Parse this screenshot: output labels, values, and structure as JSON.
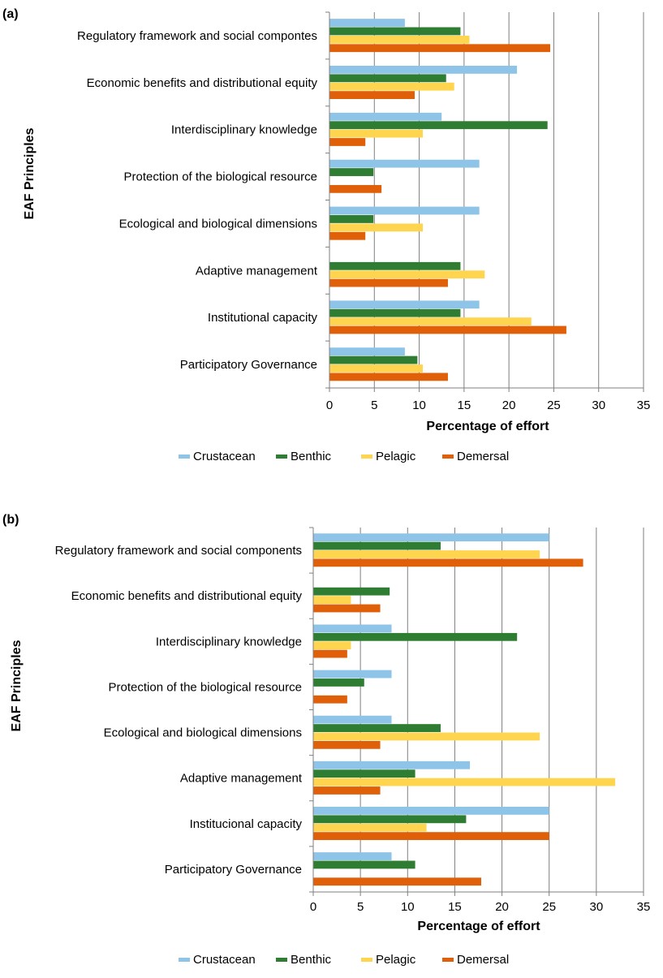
{
  "colors": {
    "Crustacean": "#8EC4E8",
    "Benthic": "#2E7D32",
    "Pelagic": "#FFD54F",
    "Demersal": "#E0600A"
  },
  "chart_data": [
    {
      "type": "bar",
      "orientation": "horizontal",
      "panel_label": "(a)",
      "xlabel": "Percentage of effort",
      "ylabel": "EAF Principles",
      "xlim": [
        0,
        35
      ],
      "xticks": [
        "0",
        "5",
        "10",
        "15",
        "20",
        "25",
        "30",
        "35"
      ],
      "grid": "vertical",
      "legend_position": "bottom",
      "categories": [
        "Regulatory framework and social compontes",
        "Economic benefits and distributional equity",
        "Interdisciplinary knowledge",
        "Protection of the biological resource",
        "Ecological and biological dimensions",
        "Adaptive management",
        "Institutional capacity",
        "Participatory Governance"
      ],
      "series": [
        {
          "name": "Crustacean",
          "values": [
            8.4,
            20.9,
            12.5,
            16.7,
            16.7,
            0,
            16.7,
            8.4
          ]
        },
        {
          "name": "Benthic",
          "values": [
            14.6,
            13.0,
            24.3,
            4.9,
            4.9,
            14.6,
            14.6,
            9.8
          ]
        },
        {
          "name": "Pelagic",
          "values": [
            15.6,
            13.9,
            10.4,
            0,
            10.4,
            17.3,
            22.5,
            10.4
          ]
        },
        {
          "name": "Demersal",
          "values": [
            24.6,
            9.5,
            4.0,
            5.8,
            4.0,
            13.2,
            26.4,
            13.2
          ]
        }
      ]
    },
    {
      "type": "bar",
      "orientation": "horizontal",
      "panel_label": "(b)",
      "xlabel": "Percentage of effort",
      "ylabel": "EAF Principles",
      "xlim": [
        0,
        35
      ],
      "xticks": [
        "0",
        "5",
        "10",
        "15",
        "20",
        "25",
        "30",
        "35"
      ],
      "grid": "vertical",
      "legend_position": "bottom",
      "categories": [
        "Regulatory framework and social components",
        "Economic benefits and distributional equity",
        "Interdisciplinary knowledge",
        "Protection of the biological resource",
        "Ecological and biological dimensions",
        "Adaptive management",
        "Institucional capacity",
        "Participatory Governance"
      ],
      "series": [
        {
          "name": "Crustacean",
          "values": [
            25.0,
            0,
            8.3,
            8.3,
            8.3,
            16.6,
            25.0,
            8.3
          ]
        },
        {
          "name": "Benthic",
          "values": [
            13.5,
            8.1,
            21.6,
            5.4,
            13.5,
            10.8,
            16.2,
            10.8
          ]
        },
        {
          "name": "Pelagic",
          "values": [
            24.0,
            4.0,
            4.0,
            0,
            24.0,
            32.0,
            12.0,
            0
          ]
        },
        {
          "name": "Demersal",
          "values": [
            28.6,
            7.1,
            3.6,
            3.6,
            7.1,
            7.1,
            25.0,
            17.8
          ]
        }
      ]
    }
  ]
}
